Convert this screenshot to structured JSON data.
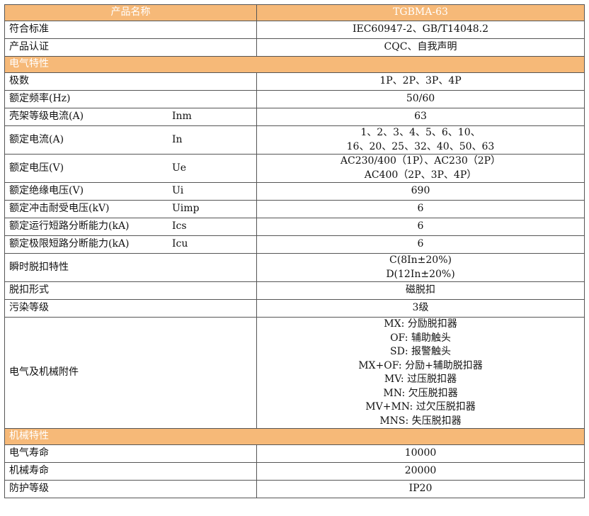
{
  "header": {
    "name_label": "产品名称",
    "model": "TGBMA-63"
  },
  "general": [
    {
      "label": "符合标准",
      "value": [
        "IEC60947-2、GB/T14048.2"
      ]
    },
    {
      "label": "产品认证",
      "value": [
        "CQC、自我声明"
      ]
    }
  ],
  "electrical": {
    "title": "电气特性",
    "rows": [
      {
        "label": "极数",
        "symbol": "",
        "value": [
          "1P、2P、3P、4P"
        ]
      },
      {
        "label": "额定频率(Hz)",
        "symbol": "",
        "value": [
          "50/60"
        ]
      },
      {
        "label": "壳架等级电流(A)",
        "symbol": "Inm",
        "value": [
          "63"
        ]
      },
      {
        "label": "额定电流(A)",
        "symbol": "In",
        "value": [
          "1、2、3、4、5、6、10、",
          "16、20、25、32、40、50、63"
        ]
      },
      {
        "label": "额定电压(V)",
        "symbol": "Ue",
        "value": [
          "AC230/400（1P）、AC230（2P）",
          "AC400（2P、3P、4P）"
        ]
      },
      {
        "label": "额定绝缘电压(V)",
        "symbol": "Ui",
        "value": [
          "690"
        ]
      },
      {
        "label": "额定冲击耐受电压(kV)",
        "symbol": "Uimp",
        "value": [
          "6"
        ]
      },
      {
        "label": "额定运行短路分断能力(kA)",
        "symbol": "Ics",
        "value": [
          "6"
        ]
      },
      {
        "label": "额定极限短路分断能力(kA)",
        "symbol": "Icu",
        "value": [
          "6"
        ]
      },
      {
        "label": "瞬时脱扣特性",
        "symbol": "",
        "value": [
          "C(8In±20%)",
          "D(12In±20%)"
        ]
      },
      {
        "label": "脱扣形式",
        "symbol": "",
        "value": [
          "磁脱扣"
        ]
      },
      {
        "label": "污染等级",
        "symbol": "",
        "value": [
          "3级"
        ]
      },
      {
        "label": "电气及机械附件",
        "symbol": "",
        "value": [
          "MX: 分励脱扣器",
          "OF: 辅助触头",
          "SD: 报警触头",
          "MX+OF: 分励+辅助脱扣器",
          "MV: 过压脱扣器",
          "MN: 欠压脱扣器",
          "MV+MN: 过欠压脱扣器",
          "MNS: 失压脱扣器"
        ]
      }
    ]
  },
  "mechanical": {
    "title": "机械特性",
    "rows": [
      {
        "label": "电气寿命",
        "symbol": "",
        "value": [
          "10000"
        ]
      },
      {
        "label": "机械寿命",
        "symbol": "",
        "value": [
          "20000"
        ]
      },
      {
        "label": "防护等级",
        "symbol": "",
        "value": [
          "IP20"
        ]
      }
    ]
  }
}
